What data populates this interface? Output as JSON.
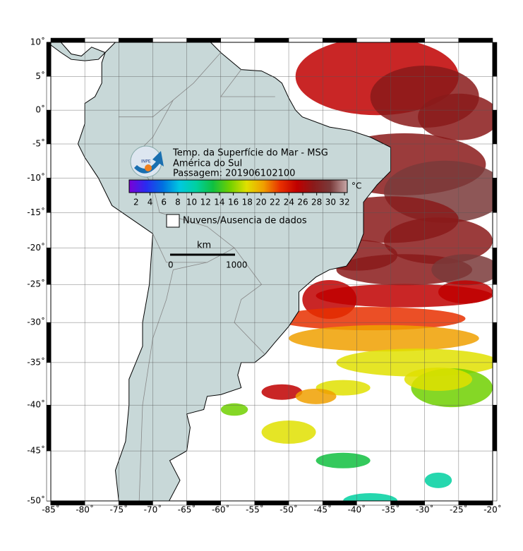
{
  "map": {
    "title": "Temp. da Superfície do Mar - MSG",
    "subtitle": "América do Sul",
    "pass": "Passagem: 201906102100",
    "logo_text": "INPE",
    "lonlim": [
      -85,
      -20
    ],
    "latlim": [
      -50,
      10
    ],
    "lon_ticks": [
      {
        "value": -85,
        "label": "-85˚"
      },
      {
        "value": -80,
        "label": "-80˚"
      },
      {
        "value": -75,
        "label": "-75˚"
      },
      {
        "value": -70,
        "label": "-70˚"
      },
      {
        "value": -65,
        "label": "-65˚"
      },
      {
        "value": -60,
        "label": "-60˚"
      },
      {
        "value": -55,
        "label": "-55˚"
      },
      {
        "value": -50,
        "label": "-50˚"
      },
      {
        "value": -45,
        "label": "-45˚"
      },
      {
        "value": -40,
        "label": "-40˚"
      },
      {
        "value": -35,
        "label": "-35˚"
      },
      {
        "value": -30,
        "label": "-30˚"
      },
      {
        "value": -25,
        "label": "-25˚"
      },
      {
        "value": -20,
        "label": "-20˚"
      }
    ],
    "lat_ticks": [
      {
        "value": 10,
        "label": "10˚"
      },
      {
        "value": 5,
        "label": "5˚"
      },
      {
        "value": 0,
        "label": "0˚"
      },
      {
        "value": -5,
        "label": "-5˚"
      },
      {
        "value": -10,
        "label": "-10˚"
      },
      {
        "value": -15,
        "label": "-15˚"
      },
      {
        "value": -20,
        "label": "-20˚"
      },
      {
        "value": -25,
        "label": "-25˚"
      },
      {
        "value": -30,
        "label": "-30˚"
      },
      {
        "value": -35,
        "label": "-35˚"
      },
      {
        "value": -40,
        "label": "-40˚"
      },
      {
        "value": -45,
        "label": "-45˚"
      },
      {
        "value": -50,
        "label": "-50˚"
      }
    ],
    "grid": true,
    "colorbar": {
      "range": [
        1,
        32.4
      ],
      "ticks": [
        2,
        4,
        6,
        8,
        10,
        12,
        14,
        16,
        18,
        20,
        22,
        24,
        26,
        28,
        30,
        32
      ],
      "unit": "°C",
      "colors": [
        "#7a00d6",
        "#2a2af0",
        "#0070e0",
        "#00c8e0",
        "#00d0a0",
        "#10c040",
        "#70d000",
        "#e0e000",
        "#f0a000",
        "#e83000",
        "#c00000",
        "#8a1a1a",
        "#7a3a3a",
        "#c8a8a8"
      ]
    },
    "legend": "Nuvens/Ausencia de dados",
    "scale": {
      "unit": "km",
      "start": 0,
      "end": 1000
    }
  }
}
